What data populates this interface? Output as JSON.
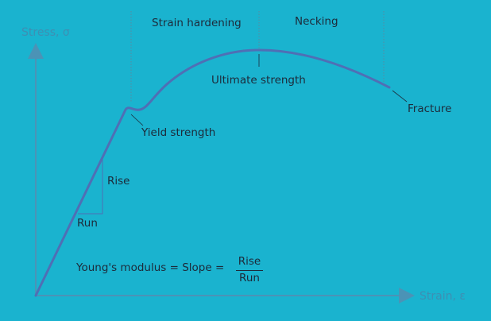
{
  "axes": {
    "y_label": "Stress, σ",
    "x_label": "Strain, ε"
  },
  "regions": {
    "strain_hardening": "Strain hardening",
    "necking": "Necking"
  },
  "annotations": {
    "ultimate_strength": "Ultimate strength",
    "fracture": "Fracture",
    "yield_strength": "Yield strength",
    "rise": "Rise",
    "run": "Run"
  },
  "formula": {
    "lhs": "Young's modulus = Slope =",
    "numerator": "Rise",
    "denominator": "Run"
  },
  "colors": {
    "background": "#1ab3cf",
    "curve": "#4f6fb5",
    "axis": "#3d8fb3",
    "text": "#1d2a3a"
  }
}
